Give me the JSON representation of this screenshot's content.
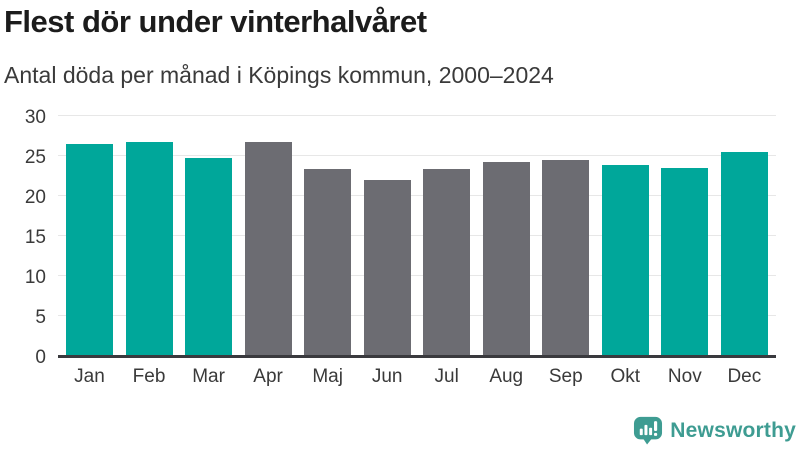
{
  "chart_data": {
    "type": "bar",
    "title": "Flest dör under vinterhalvåret",
    "subtitle": "Antal döda per månad i Köpings kommun, 2000–2024",
    "categories": [
      "Jan",
      "Feb",
      "Mar",
      "Apr",
      "Maj",
      "Jun",
      "Jul",
      "Aug",
      "Sep",
      "Okt",
      "Nov",
      "Dec"
    ],
    "values": [
      26.7,
      27.0,
      24.9,
      27.0,
      23.6,
      22.2,
      23.5,
      24.4,
      24.7,
      24.1,
      23.7,
      25.7
    ],
    "bar_colors": [
      "#00a79a",
      "#00a79a",
      "#00a79a",
      "#6c6c72",
      "#6c6c72",
      "#6c6c72",
      "#6c6c72",
      "#6c6c72",
      "#6c6c72",
      "#00a79a",
      "#00a79a",
      "#00a79a"
    ],
    "color_legend": {
      "winter_months": "#00a79a",
      "summer_months": "#6c6c72"
    },
    "xlabel": "",
    "ylabel": "",
    "ylim": [
      0,
      30
    ],
    "yticks": [
      0,
      5,
      10,
      15,
      20,
      25,
      30
    ],
    "grid": true,
    "legend_position": "none",
    "axis_colors": {
      "baseline": "#3a3a3e",
      "gridline": "#e7e7e7",
      "tick_text": "#3a3a3a"
    }
  },
  "branding": {
    "logo_text": "Newsworthy",
    "logo_color": "#3e9c92",
    "logo_icon": "bar-chart-speech-bubble-icon"
  }
}
